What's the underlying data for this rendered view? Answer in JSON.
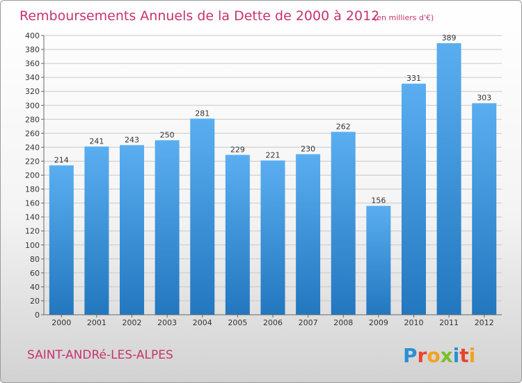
{
  "chart_data": {
    "type": "bar",
    "title": "Remboursements Annuels de la Dette de 2000 à 2012",
    "subtitle": "(en milliers d'€)",
    "categories": [
      "2000",
      "2001",
      "2002",
      "2003",
      "2004",
      "2005",
      "2006",
      "2007",
      "2008",
      "2009",
      "2010",
      "2011",
      "2012"
    ],
    "values": [
      214,
      241,
      243,
      250,
      281,
      229,
      221,
      230,
      262,
      156,
      331,
      389,
      303
    ],
    "ylim": [
      0,
      400
    ],
    "ytick_step": 20,
    "grid": true,
    "xlabel": "",
    "ylabel": "",
    "bar_color_top": "#5aaef0",
    "bar_color_bottom": "#2277bf"
  },
  "footer": {
    "town": "SAINT-ANDRé-LES-ALPES",
    "logo_text": "Proxiti"
  },
  "colors": {
    "title": "#c8336e",
    "grid": "#c8c8c8"
  }
}
